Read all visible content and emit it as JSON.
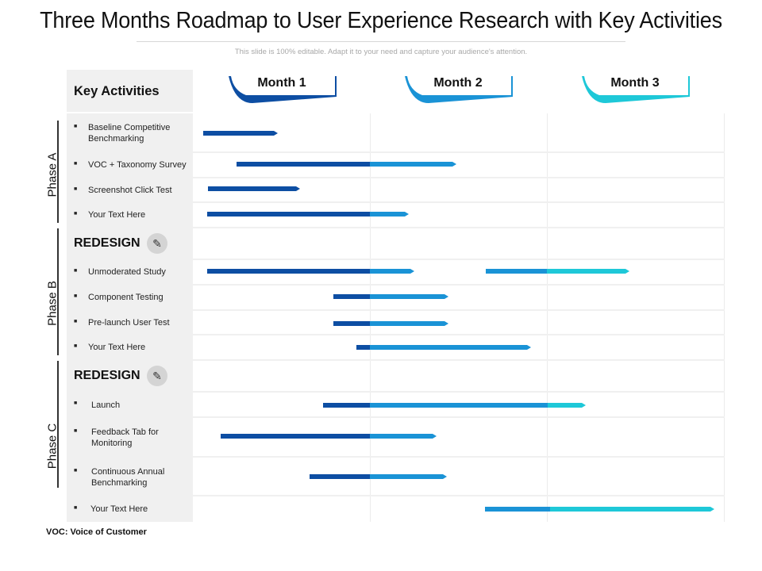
{
  "title": "Three Months Roadmap to User Experience Research with Key Activities",
  "subtitle": "This slide is 100% editable. Adapt it to your need and capture your audience's attention.",
  "header": {
    "key_activities": "Key Activities"
  },
  "months": [
    "Month 1",
    "Month 2",
    "Month 3"
  ],
  "phases": [
    "Phase A",
    "Phase B",
    "Phase C"
  ],
  "sections": [
    "REDESIGN",
    "REDESIGN"
  ],
  "activities": [
    "Baseline Competitive\nBenchmarking",
    "VOC + Taxonomy Survey",
    "Screenshot Click Test",
    "Your Text Here",
    "Unmoderated Study",
    "Component Testing",
    "Pre-launch User Test",
    "Your Text Here",
    "Launch",
    "Feedback Tab for\nMonitoring",
    "Continuous Annual\nBenchmarking",
    "Your Text Here"
  ],
  "footnote": "VOC:  Voice of Customer",
  "colors": {
    "month1": "#0d4ea3",
    "month2": "#1a93d6",
    "month3": "#1ec8d8",
    "cell_bg": "#f0f0f0"
  },
  "icons": {
    "section": "pencil-icon"
  }
}
